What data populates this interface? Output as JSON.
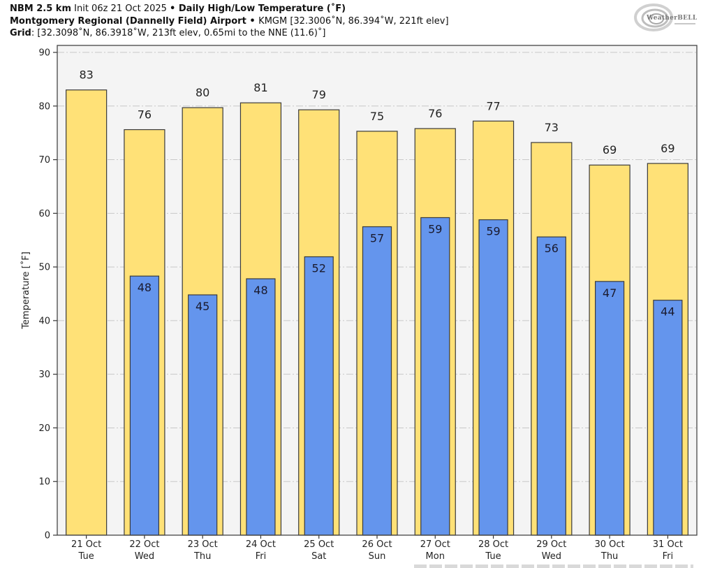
{
  "header": {
    "line1_model": "NBM 2.5 km",
    "line1_init": " Init 06z 21 Oct 2025 ",
    "line1_sep": "•",
    "line1_title": " Daily High/Low Temperature (˚F)",
    "line2_station": "Montgomery Regional (Dannelly Field) Airport",
    "line2_sep": " • ",
    "line2_detail": "KMGM [32.3006˚N, 86.394˚W, 221ft elev]",
    "line3_label": "Grid",
    "line3_detail": ": [32.3098˚N, 86.3918˚W, 213ft elev, 0.65mi to the NNE (11.6)˚]"
  },
  "logo": {
    "text": "WeatherBELL",
    "icon": "swirl-logo-icon"
  },
  "colors": {
    "high": "#FFE177",
    "low": "#6495ED",
    "plot_bg": "#F4F4F4",
    "edge": "#3a3a3a",
    "grid": "#c8c8c8"
  },
  "chart_data": {
    "type": "bar",
    "title": "Daily High/Low Temperature (˚F)",
    "xlabel": "",
    "ylabel": "Temperature [˚F]",
    "ylim": [
      0,
      90
    ],
    "yticks": [
      0,
      10,
      20,
      30,
      40,
      50,
      60,
      70,
      80,
      90
    ],
    "grid": true,
    "legend": "none",
    "categories": [
      {
        "date": "21 Oct",
        "day": "Tue"
      },
      {
        "date": "22 Oct",
        "day": "Wed"
      },
      {
        "date": "23 Oct",
        "day": "Thu"
      },
      {
        "date": "24 Oct",
        "day": "Fri"
      },
      {
        "date": "25 Oct",
        "day": "Sat"
      },
      {
        "date": "26 Oct",
        "day": "Sun"
      },
      {
        "date": "27 Oct",
        "day": "Mon"
      },
      {
        "date": "28 Oct",
        "day": "Tue"
      },
      {
        "date": "29 Oct",
        "day": "Wed"
      },
      {
        "date": "30 Oct",
        "day": "Thu"
      },
      {
        "date": "31 Oct",
        "day": "Fri"
      }
    ],
    "series": [
      {
        "name": "High",
        "values": [
          83.0,
          75.6,
          79.7,
          80.6,
          79.3,
          75.3,
          75.8,
          77.2,
          73.2,
          69.0,
          69.3
        ],
        "labels": [
          "83",
          "76",
          "80",
          "81",
          "79",
          "75",
          "76",
          "77",
          "73",
          "69",
          "69"
        ]
      },
      {
        "name": "Low",
        "values": [
          null,
          48.3,
          44.8,
          47.8,
          51.9,
          57.5,
          59.2,
          58.8,
          55.6,
          47.3,
          43.8
        ],
        "labels": [
          null,
          "48",
          "45",
          "48",
          "52",
          "57",
          "59",
          "59",
          "56",
          "47",
          "44"
        ]
      }
    ]
  }
}
